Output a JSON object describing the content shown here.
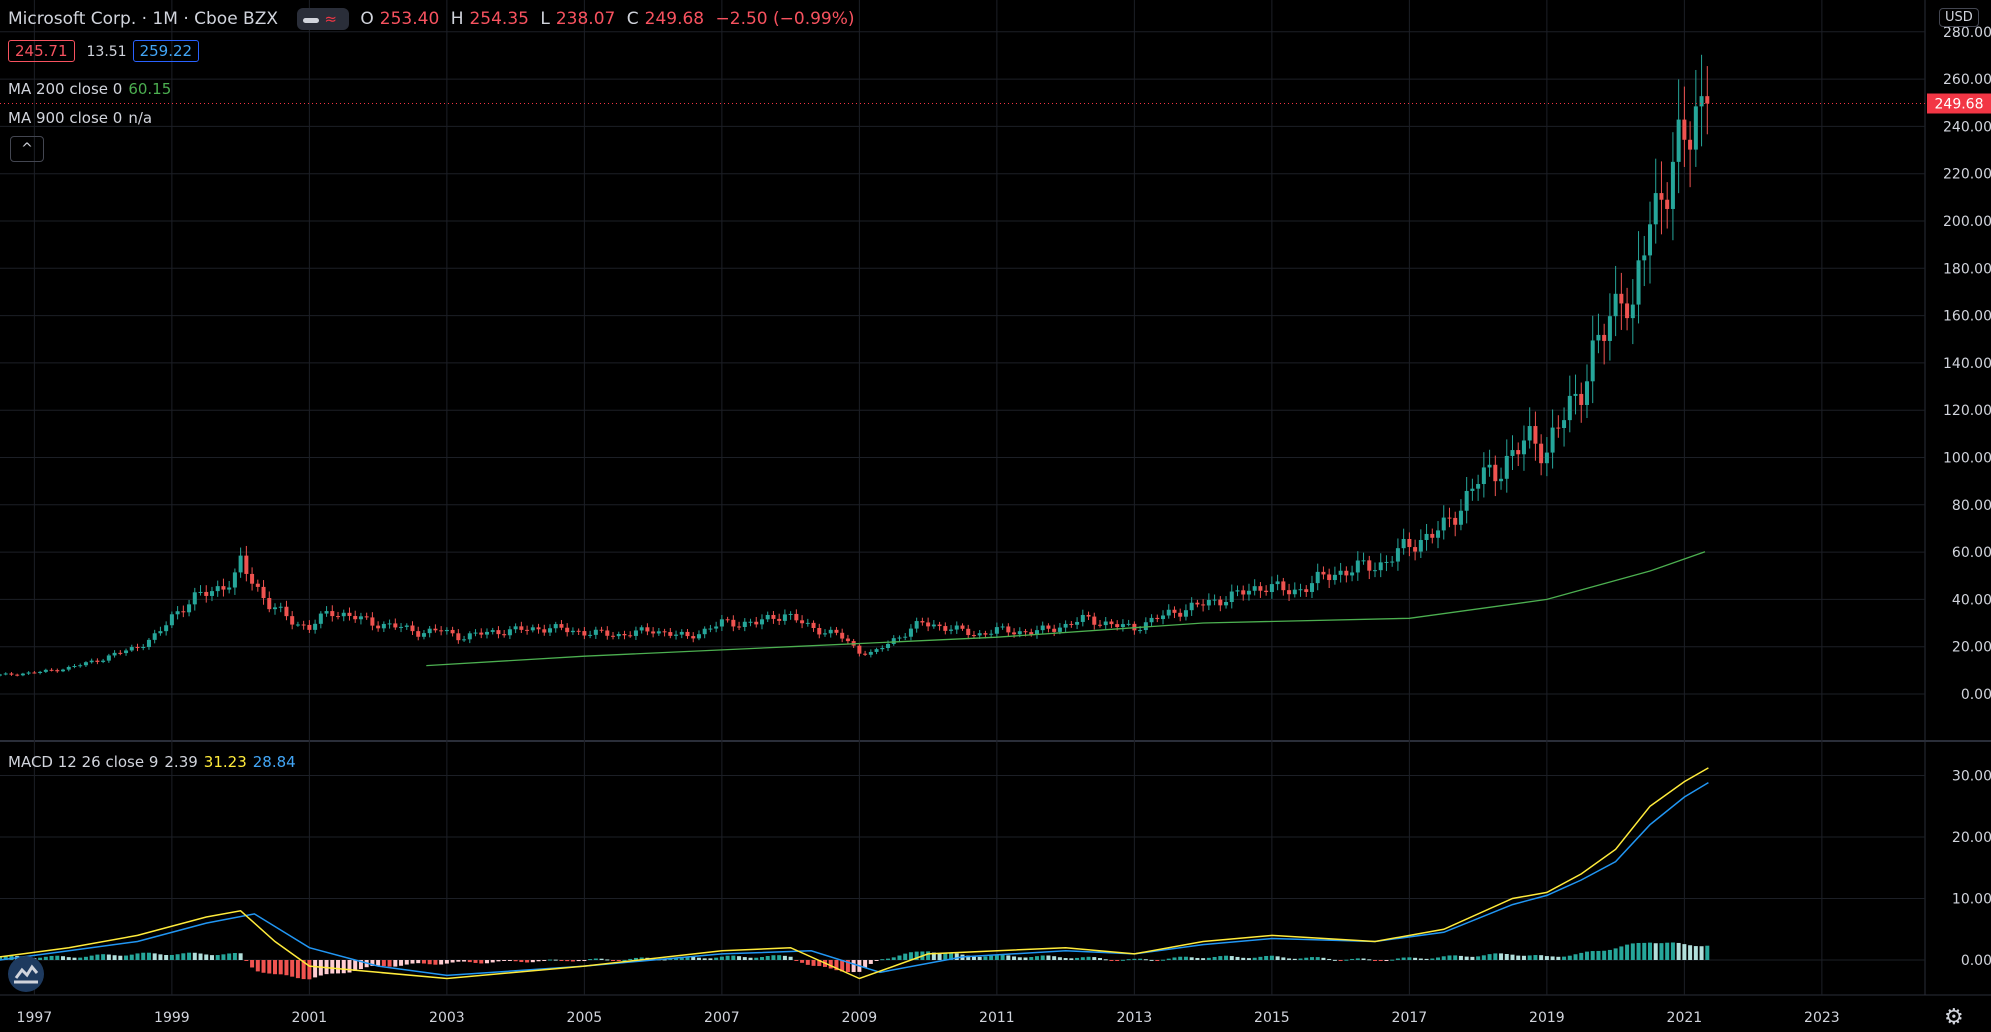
{
  "header": {
    "symbol": "Microsoft Corp. · 1M · Cboe BZX",
    "ohlc": {
      "open_label": "O",
      "open": "253.40",
      "high_label": "H",
      "high": "254.35",
      "low_label": "L",
      "low": "238.07",
      "close_label": "C",
      "close": "249.68",
      "change": "−2.50 (−0.99%)"
    },
    "bid": "245.71",
    "spread": "13.51",
    "ask": "259.22",
    "collapse_label": "^"
  },
  "indicators": {
    "ma200": {
      "name": "MA 200 close 0",
      "value": "60.15"
    },
    "ma900": {
      "name": "MA 900 close 0",
      "value": "n/a"
    },
    "macd": {
      "name": "MACD 12 26 close 9",
      "hist": "2.39",
      "macd": "31.23",
      "signal": "28.84"
    }
  },
  "currency": "USD",
  "colors": {
    "up": "#26a69a",
    "down": "#ef5350",
    "ma200": "#4caf50",
    "macd": "#ffeb3b",
    "signal": "#2196f3",
    "grid": "#1c1f26",
    "price_tag": "#f23645"
  },
  "chart_data": [
    {
      "type": "candlestick",
      "title": "Microsoft Corp. · 1M · Cboe BZX",
      "x_tick_labels": [
        "1997",
        "1999",
        "2001",
        "2003",
        "2005",
        "2007",
        "2009",
        "2011",
        "2013",
        "2015",
        "2017",
        "2019",
        "2021",
        "2023"
      ],
      "y_tick_labels": [
        "0.00",
        "20.00",
        "40.00",
        "60.00",
        "80.00",
        "100.00",
        "120.00",
        "140.00",
        "160.00",
        "180.00",
        "200.00",
        "220.00",
        "240.00",
        "260.00",
        "280.00"
      ],
      "ylim": [
        0,
        280
      ],
      "last_price": "249.68",
      "xlim": [
        1996.5,
        2024.5
      ],
      "close_series": [
        [
          1996.5,
          8
        ],
        [
          1997.0,
          9
        ],
        [
          1997.5,
          11
        ],
        [
          1998.0,
          15
        ],
        [
          1998.5,
          20
        ],
        [
          1998.8,
          25
        ],
        [
          1999.0,
          33
        ],
        [
          1999.3,
          40
        ],
        [
          1999.6,
          44
        ],
        [
          1999.9,
          48
        ],
        [
          2000.0,
          55
        ],
        [
          2000.2,
          47
        ],
        [
          2000.4,
          38
        ],
        [
          2000.6,
          34
        ],
        [
          2000.8,
          30
        ],
        [
          2001.0,
          28
        ],
        [
          2001.3,
          35
        ],
        [
          2001.6,
          33
        ],
        [
          2001.9,
          30
        ],
        [
          2002.2,
          29
        ],
        [
          2002.6,
          26
        ],
        [
          2002.9,
          27
        ],
        [
          2003.2,
          24
        ],
        [
          2003.6,
          26
        ],
        [
          2004.0,
          27
        ],
        [
          2004.5,
          28
        ],
        [
          2005.0,
          26
        ],
        [
          2005.5,
          25
        ],
        [
          2006.0,
          27
        ],
        [
          2006.5,
          24
        ],
        [
          2007.0,
          30
        ],
        [
          2007.5,
          30
        ],
        [
          2007.9,
          34
        ],
        [
          2008.3,
          28
        ],
        [
          2008.7,
          25
        ],
        [
          2009.0,
          18
        ],
        [
          2009.2,
          17
        ],
        [
          2009.5,
          23
        ],
        [
          2009.9,
          30
        ],
        [
          2010.3,
          28
        ],
        [
          2010.7,
          25
        ],
        [
          2011.0,
          27
        ],
        [
          2011.5,
          26
        ],
        [
          2012.0,
          29
        ],
        [
          2012.3,
          32
        ],
        [
          2012.7,
          29
        ],
        [
          2013.0,
          28
        ],
        [
          2013.5,
          34
        ],
        [
          2014.0,
          38
        ],
        [
          2014.5,
          42
        ],
        [
          2014.9,
          46
        ],
        [
          2015.3,
          43
        ],
        [
          2015.8,
          50
        ],
        [
          2016.2,
          53
        ],
        [
          2016.6,
          55
        ],
        [
          2017.0,
          63
        ],
        [
          2017.5,
          70
        ],
        [
          2018.0,
          90
        ],
        [
          2018.5,
          100
        ],
        [
          2018.8,
          110
        ],
        [
          2019.0,
          102
        ],
        [
          2019.3,
          120
        ],
        [
          2019.6,
          137
        ],
        [
          2019.9,
          157
        ],
        [
          2020.1,
          175
        ],
        [
          2020.25,
          158
        ],
        [
          2020.5,
          203
        ],
        [
          2020.7,
          215
        ],
        [
          2020.9,
          225
        ],
        [
          2021.0,
          232
        ],
        [
          2021.2,
          252
        ],
        [
          2021.35,
          249.68
        ]
      ],
      "ma200_series": [
        [
          2002.7,
          12
        ],
        [
          2005,
          16
        ],
        [
          2008,
          20
        ],
        [
          2011,
          24
        ],
        [
          2014,
          30
        ],
        [
          2017,
          32
        ],
        [
          2019,
          40
        ],
        [
          2020.5,
          52
        ],
        [
          2021.3,
          60.15
        ]
      ]
    },
    {
      "type": "line",
      "title": "MACD 12 26 close 9",
      "y_tick_labels": [
        "0.00",
        "10.00",
        "20.00",
        "30.00"
      ],
      "ylim": [
        -3,
        33
      ],
      "series": [
        {
          "name": "MACD",
          "values": [
            [
              1996.5,
              0.5
            ],
            [
              1997.5,
              2
            ],
            [
              1998.5,
              4
            ],
            [
              1999.5,
              7
            ],
            [
              2000.0,
              8
            ],
            [
              2000.5,
              3
            ],
            [
              2001.0,
              -1
            ],
            [
              2002.0,
              -2
            ],
            [
              2003.0,
              -3
            ],
            [
              2005.0,
              -1
            ],
            [
              2007.0,
              1.5
            ],
            [
              2008.0,
              2
            ],
            [
              2009.0,
              -3
            ],
            [
              2010.0,
              1
            ],
            [
              2012.0,
              2
            ],
            [
              2013.0,
              1
            ],
            [
              2014.0,
              3
            ],
            [
              2015.0,
              4
            ],
            [
              2016.5,
              3
            ],
            [
              2017.5,
              5
            ],
            [
              2018.5,
              10
            ],
            [
              2019.0,
              11
            ],
            [
              2019.5,
              14
            ],
            [
              2020.0,
              18
            ],
            [
              2020.5,
              25
            ],
            [
              2021.0,
              29
            ],
            [
              2021.35,
              31.23
            ]
          ]
        },
        {
          "name": "Signal",
          "values": [
            [
              1996.5,
              0
            ],
            [
              1997.5,
              1.5
            ],
            [
              1998.5,
              3
            ],
            [
              1999.5,
              6
            ],
            [
              2000.2,
              7.5
            ],
            [
              2001.0,
              2
            ],
            [
              2002.0,
              -1
            ],
            [
              2003.0,
              -2.5
            ],
            [
              2005.0,
              -1
            ],
            [
              2007.0,
              1
            ],
            [
              2008.3,
              1.5
            ],
            [
              2009.3,
              -2
            ],
            [
              2010.5,
              0.5
            ],
            [
              2012.0,
              1.5
            ],
            [
              2013.0,
              1
            ],
            [
              2014.0,
              2.5
            ],
            [
              2015.0,
              3.5
            ],
            [
              2016.5,
              3
            ],
            [
              2017.5,
              4.5
            ],
            [
              2018.5,
              9
            ],
            [
              2019.0,
              10.5
            ],
            [
              2019.5,
              13
            ],
            [
              2020.0,
              16
            ],
            [
              2020.5,
              22
            ],
            [
              2021.0,
              26.5
            ],
            [
              2021.35,
              28.84
            ]
          ]
        }
      ],
      "hist_last": "2.39"
    }
  ]
}
